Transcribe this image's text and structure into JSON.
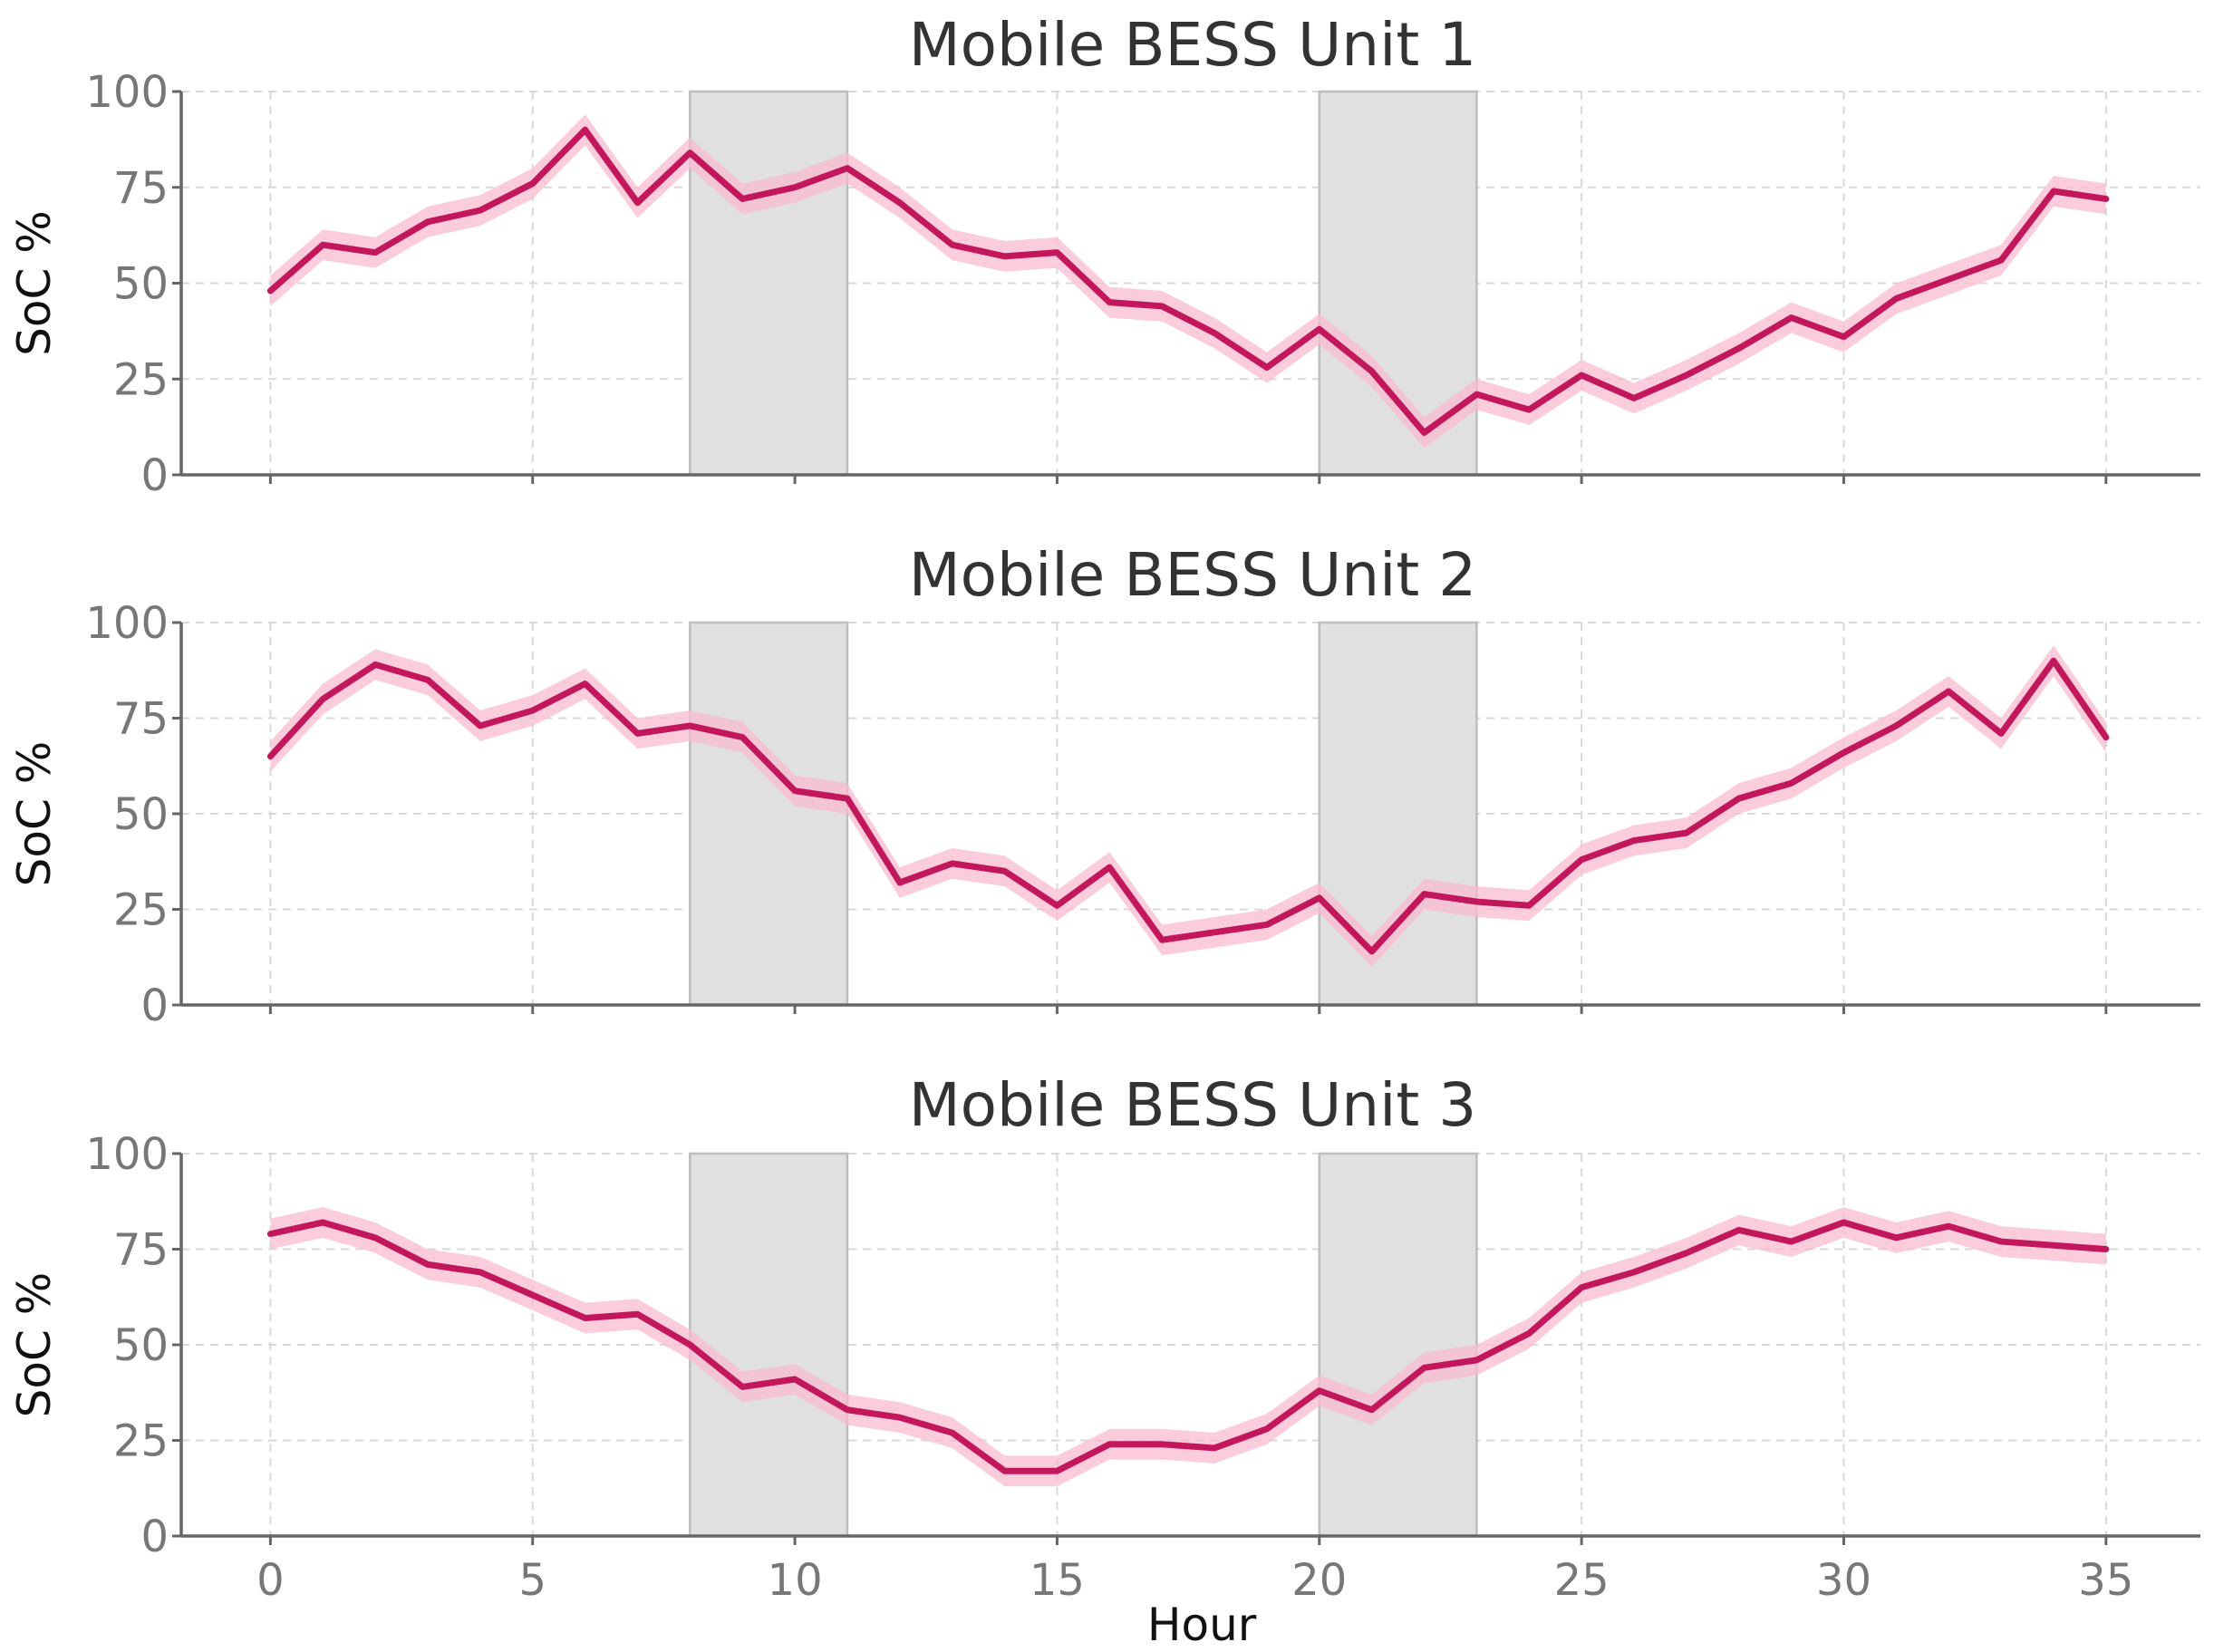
{
  "chart_data": {
    "type": "line",
    "xlabel": "Hour",
    "x_ticks": [
      0,
      5,
      10,
      15,
      20,
      25,
      30,
      35
    ],
    "y_ticks": [
      0,
      25,
      50,
      75,
      100
    ],
    "xlim": [
      -1.7,
      36.8
    ],
    "ylim": [
      0,
      100
    ],
    "grid": true,
    "shaded_intervals": [
      [
        8,
        11
      ],
      [
        20,
        23
      ]
    ],
    "colors": {
      "line": "#c2185b",
      "band": "#f8bbd0",
      "shade": "#e0e0e0"
    },
    "panels": [
      {
        "title": "Mobile BESS Unit 1",
        "ylabel": "SoC %",
        "band_halfwidth": 4,
        "x": [
          0,
          1,
          2,
          3,
          4,
          5,
          6,
          7,
          8,
          9,
          10,
          11,
          12,
          13,
          14,
          15,
          16,
          17,
          18,
          19,
          20,
          21,
          22,
          23,
          24,
          25,
          26,
          27,
          28,
          29,
          30,
          31,
          32,
          33,
          34,
          35
        ],
        "values": [
          48,
          60,
          58,
          66,
          69,
          76,
          90,
          71,
          84,
          72,
          75,
          80,
          71,
          60,
          57,
          58,
          45,
          44,
          37,
          28,
          38,
          27,
          11,
          21,
          17,
          26,
          20,
          26,
          33,
          41,
          36,
          46,
          51,
          56,
          74,
          72
        ]
      },
      {
        "title": "Mobile BESS Unit 2",
        "ylabel": "SoC %",
        "band_halfwidth": 4,
        "x": [
          0,
          1,
          2,
          3,
          4,
          5,
          6,
          7,
          8,
          9,
          10,
          11,
          12,
          13,
          14,
          15,
          16,
          17,
          18,
          19,
          20,
          21,
          22,
          23,
          24,
          25,
          26,
          27,
          28,
          29,
          30,
          31,
          32,
          33,
          34,
          35
        ],
        "values": [
          65,
          80,
          89,
          85,
          73,
          77,
          84,
          71,
          73,
          70,
          56,
          54,
          32,
          37,
          35,
          26,
          36,
          17,
          19,
          21,
          28,
          14,
          29,
          27,
          26,
          38,
          43,
          45,
          54,
          58,
          66,
          73,
          82,
          71,
          90,
          70
        ]
      },
      {
        "title": "Mobile BESS Unit 3",
        "ylabel": "SoC %",
        "band_halfwidth": 4,
        "x": [
          0,
          1,
          2,
          3,
          4,
          5,
          6,
          7,
          8,
          9,
          10,
          11,
          12,
          13,
          14,
          15,
          16,
          17,
          18,
          19,
          20,
          21,
          22,
          23,
          24,
          25,
          26,
          27,
          28,
          29,
          30,
          31,
          32,
          33,
          34,
          35
        ],
        "values": [
          79,
          82,
          78,
          71,
          69,
          63,
          57,
          58,
          50,
          39,
          41,
          33,
          31,
          27,
          17,
          17,
          24,
          24,
          23,
          28,
          38,
          33,
          44,
          46,
          53,
          65,
          69,
          74,
          80,
          77,
          82,
          78,
          81,
          77,
          76,
          75
        ]
      }
    ]
  }
}
